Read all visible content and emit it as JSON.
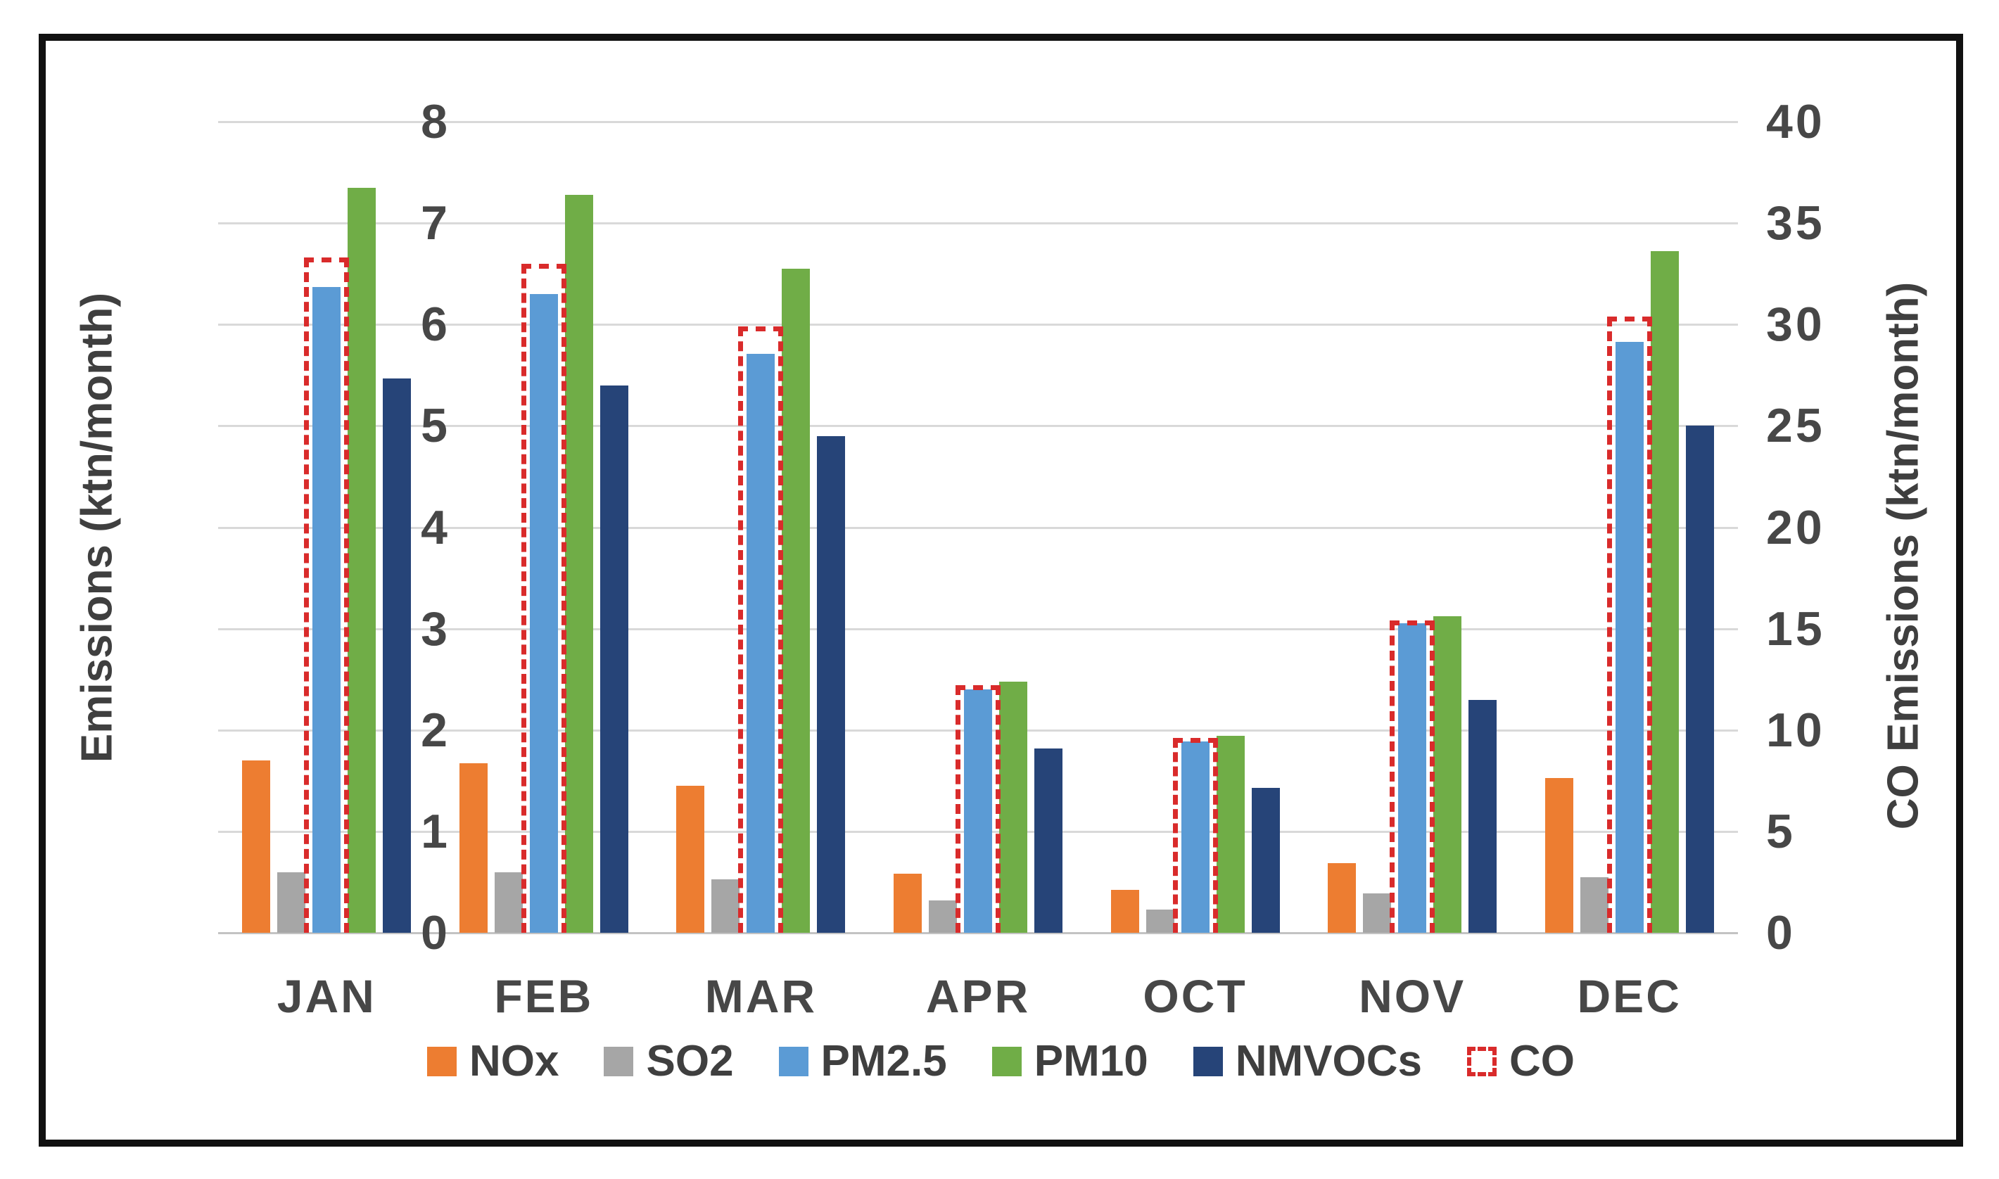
{
  "chart_data": {
    "type": "bar",
    "title": "",
    "categories": [
      "JAN",
      "FEB",
      "MAR",
      "APR",
      "OCT",
      "NOV",
      "DEC"
    ],
    "series": [
      {
        "name": "NOx",
        "color": "#ED7D31",
        "axis": "left",
        "values": [
          1.7,
          1.67,
          1.45,
          0.58,
          0.42,
          0.69,
          1.53
        ]
      },
      {
        "name": "SO2",
        "color": "#A6A6A6",
        "axis": "left",
        "values": [
          0.6,
          0.6,
          0.53,
          0.32,
          0.23,
          0.39,
          0.55
        ]
      },
      {
        "name": "PM2.5",
        "color": "#5B9BD5",
        "axis": "left",
        "values": [
          6.37,
          6.3,
          5.71,
          2.4,
          1.89,
          3.05,
          5.83
        ]
      },
      {
        "name": "PM10",
        "color": "#70AD47",
        "axis": "left",
        "values": [
          7.35,
          7.28,
          6.55,
          2.48,
          1.94,
          3.12,
          6.72
        ]
      },
      {
        "name": "NMVOCs",
        "color": "#264478",
        "axis": "left",
        "values": [
          5.47,
          5.4,
          4.9,
          1.82,
          1.43,
          2.3,
          5.0
        ]
      }
    ],
    "co_series": {
      "name": "CO",
      "style": "dashed-outline",
      "color": "#D92B2B",
      "axis": "right",
      "values": [
        33.3,
        33.0,
        29.9,
        12.2,
        9.6,
        15.4,
        30.4
      ]
    },
    "left_axis": {
      "title": "Emissions (ktn/month)",
      "min": 0,
      "max": 8,
      "step": 1,
      "ticks": [
        "8",
        "7",
        "6",
        "5",
        "4",
        "3",
        "2",
        "1",
        "0"
      ]
    },
    "right_axis": {
      "title": "CO Emissions (ktn/month)",
      "min": 0,
      "max": 40,
      "step": 5,
      "ticks": [
        "40",
        "35",
        "30",
        "25",
        "20",
        "15",
        "10",
        "5",
        "0"
      ]
    },
    "legend": [
      "NOx",
      "SO2",
      "PM2.5",
      "PM10",
      "NMVOCs",
      "CO"
    ],
    "grid": true,
    "legend_position": "bottom"
  }
}
